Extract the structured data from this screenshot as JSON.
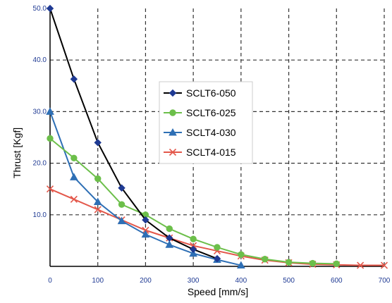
{
  "chart_data": {
    "type": "line",
    "title": "",
    "xlabel": "Speed [mm/s]",
    "ylabel": "Thrust [Kgf]",
    "xlim": [
      0,
      700
    ],
    "ylim": [
      0,
      50
    ],
    "x_ticks": [
      "0",
      "100",
      "200",
      "300",
      "400",
      "500",
      "600",
      "700"
    ],
    "y_ticks": [
      "10.0",
      "20.0",
      "30.0",
      "40.0",
      "50.0"
    ],
    "grid": true,
    "legend_position": "center-right",
    "series": [
      {
        "name": "SCLT6-050",
        "color": "#000000",
        "marker": "diamond",
        "marker_color": "#1f3a93",
        "points": [
          [
            0,
            50
          ],
          [
            50,
            36.3
          ],
          [
            100,
            24
          ],
          [
            150,
            15.2
          ],
          [
            200,
            9
          ],
          [
            250,
            5.5
          ],
          [
            300,
            3.3
          ],
          [
            350,
            1.5
          ]
        ]
      },
      {
        "name": "SCLT6-025",
        "color": "#6cbf4a",
        "marker": "circle",
        "marker_color": "#6cbf4a",
        "points": [
          [
            0,
            24.8
          ],
          [
            50,
            21
          ],
          [
            100,
            17
          ],
          [
            150,
            12
          ],
          [
            200,
            10
          ],
          [
            250,
            7.3
          ],
          [
            300,
            5.3
          ],
          [
            350,
            3.7
          ],
          [
            400,
            2.3
          ],
          [
            450,
            1.4
          ],
          [
            500,
            0.8
          ],
          [
            550,
            0.6
          ],
          [
            600,
            0.5
          ]
        ]
      },
      {
        "name": "SCLT4-030",
        "color": "#2e6fb5",
        "marker": "triangle",
        "marker_color": "#2e6fb5",
        "points": [
          [
            0,
            30
          ],
          [
            50,
            17.3
          ],
          [
            100,
            12.5
          ],
          [
            150,
            8.8
          ],
          [
            200,
            6.2
          ],
          [
            250,
            4.2
          ],
          [
            300,
            2.5
          ],
          [
            350,
            1.3
          ],
          [
            400,
            0.2
          ]
        ]
      },
      {
        "name": "SCLT4-015",
        "color": "#e3574a",
        "marker": "x",
        "marker_color": "#e3574a",
        "points": [
          [
            0,
            15
          ],
          [
            50,
            13
          ],
          [
            100,
            11
          ],
          [
            150,
            9
          ],
          [
            200,
            7
          ],
          [
            250,
            5.5
          ],
          [
            300,
            4
          ],
          [
            350,
            3
          ],
          [
            400,
            2
          ],
          [
            450,
            1.2
          ],
          [
            500,
            0.7
          ],
          [
            550,
            0.4
          ],
          [
            600,
            0.3
          ],
          [
            650,
            0.2
          ],
          [
            700,
            0.2
          ]
        ]
      }
    ]
  }
}
